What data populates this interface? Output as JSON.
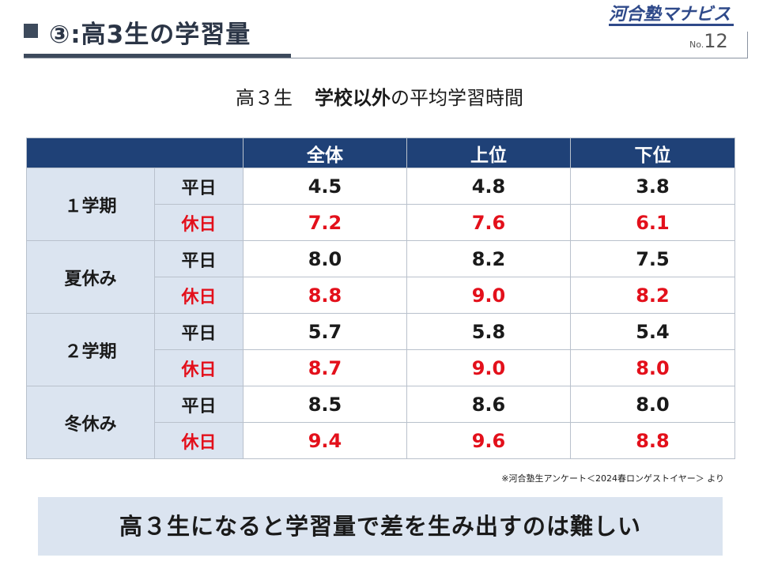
{
  "header": {
    "circle_num": "③",
    "title": ":高3生の学習量",
    "logo": "河合塾マナビス",
    "page_prefix": "No.",
    "page_number": "12"
  },
  "subtitle": {
    "part1": "高３生",
    "part2_bold": "学校以外",
    "part3": "の平均学習時間"
  },
  "table": {
    "columns": [
      "全体",
      "上位",
      "下位"
    ],
    "rows": [
      {
        "period": "１学期",
        "weekday_label": "平日",
        "weekday": [
          "4.5",
          "4.8",
          "3.8"
        ],
        "holiday_label": "休日",
        "holiday": [
          "7.2",
          "7.6",
          "6.1"
        ]
      },
      {
        "period": "夏休み",
        "weekday_label": "平日",
        "weekday": [
          "8.0",
          "8.2",
          "7.5"
        ],
        "holiday_label": "休日",
        "holiday": [
          "8.8",
          "9.0",
          "8.2"
        ]
      },
      {
        "period": "２学期",
        "weekday_label": "平日",
        "weekday": [
          "5.7",
          "5.8",
          "5.4"
        ],
        "holiday_label": "休日",
        "holiday": [
          "8.7",
          "9.0",
          "8.0"
        ]
      },
      {
        "period": "冬休み",
        "weekday_label": "平日",
        "weekday": [
          "8.5",
          "8.6",
          "8.0"
        ],
        "holiday_label": "休日",
        "holiday": [
          "9.4",
          "9.6",
          "8.8"
        ]
      }
    ]
  },
  "source_note": "※河合塾生アンケート＜2024春ロンゲストイヤー＞ より",
  "conclusion": "高３生になると学習量で差を生み出すのは難しい",
  "colors": {
    "header_fill": "#1f4177",
    "label_fill": "#dbe4f0",
    "holiday_text": "#e3101b",
    "logo": "#2f4a8a"
  }
}
